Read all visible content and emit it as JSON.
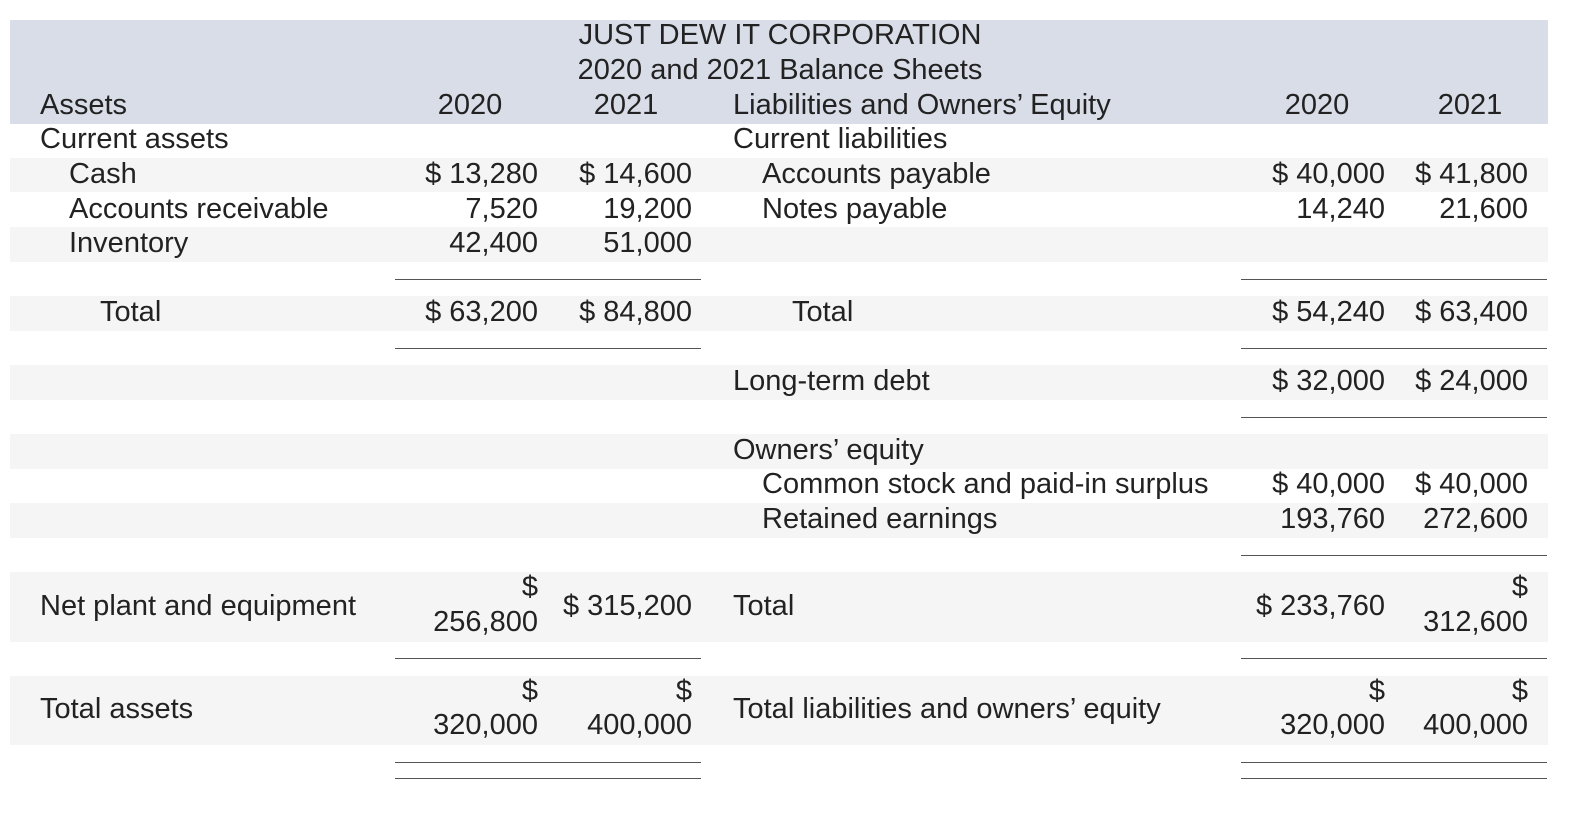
{
  "header": {
    "company": "JUST DEW IT CORPORATION",
    "subtitle": "2020 and 2021 Balance Sheets",
    "assets_heading": "Assets",
    "liab_heading": "Liabilities and Owners’ Equity",
    "year1": "2020",
    "year2": "2021"
  },
  "assets": {
    "current_heading": "Current assets",
    "cash": {
      "label": "Cash",
      "y2020": "$ 13,280",
      "y2021": "$ 14,600"
    },
    "ar": {
      "label": "Accounts receivable",
      "y2020": "7,520",
      "y2021": "19,200"
    },
    "inventory": {
      "label": "Inventory",
      "y2020": "42,400",
      "y2021": "51,000"
    },
    "total": {
      "label": "Total",
      "y2020": "$ 63,200",
      "y2021": "$ 84,800"
    },
    "net_plant": {
      "label": "Net plant and equipment",
      "y2020_sym": "$",
      "y2020": "256,800",
      "y2021": "$ 315,200"
    },
    "total_assets": {
      "label": "Total assets",
      "y2020_sym": "$",
      "y2020": "320,000",
      "y2021_sym": "$",
      "y2021": "400,000"
    }
  },
  "liabilities": {
    "current_heading": "Current liabilities",
    "ap": {
      "label": "Accounts payable",
      "y2020": "$ 40,000",
      "y2021": "$ 41,800"
    },
    "np": {
      "label": "Notes payable",
      "y2020": "14,240",
      "y2021": "21,600"
    },
    "total": {
      "label": "Total",
      "y2020": "$ 54,240",
      "y2021": "$ 63,400"
    },
    "ltd": {
      "label": "Long-term debt",
      "y2020": "$ 32,000",
      "y2021": "$ 24,000"
    },
    "equity_heading": "Owners’ equity",
    "common": {
      "label": "Common stock and paid-in surplus",
      "y2020": "$ 40,000",
      "y2021": "$ 40,000"
    },
    "retained": {
      "label": "Retained earnings",
      "y2020": "193,760",
      "y2021": "272,600"
    },
    "equity_total": {
      "label": "Total",
      "y2020": "$ 233,760",
      "y2021_sym": "$",
      "y2021": "312,600"
    },
    "total_le": {
      "label": "Total liabilities and owners’ equity",
      "y2020_sym": "$",
      "y2020": "320,000",
      "y2021_sym": "$",
      "y2021": "400,000"
    }
  }
}
